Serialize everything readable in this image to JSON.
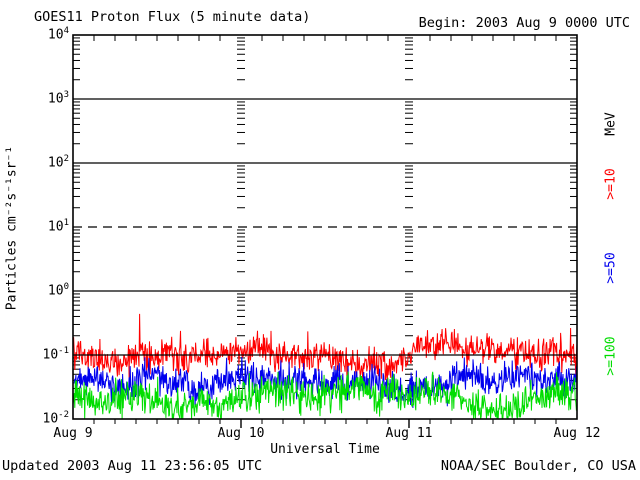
{
  "header": {
    "title": "GOES11 Proton Flux (5 minute data)",
    "begin_label": "Begin: 2003 Aug 9 0000 UTC"
  },
  "footer": {
    "updated": "Updated 2003 Aug 11 23:56:05 UTC",
    "credit": "NOAA/SEC Boulder, CO USA"
  },
  "chart_data": {
    "type": "line",
    "title": "GOES11 Proton Flux (5 minute data)",
    "xlabel": "Universal Time",
    "ylabel": "Particles cm⁻²s⁻¹sr⁻¹",
    "y_scale": "log",
    "ylim_exponents": [
      -2,
      4
    ],
    "y_tick_exponents": [
      4,
      3,
      2,
      1,
      0,
      -1,
      -2
    ],
    "x_tick_labels": [
      "Aug 9",
      "Aug 10",
      "Aug 11",
      "Aug 12"
    ],
    "x_start": "2003 Aug 9 0000 UTC",
    "days": 3,
    "minor_tick_hours": 3,
    "samples_per_day": 288,
    "grid": {
      "solid_decades": [
        3,
        2,
        0,
        -1
      ],
      "dashed_decades": [
        1
      ],
      "day_boundary_log_tick_columns": true
    },
    "legend": {
      "unit": "MeV",
      "position": "right-rotated"
    },
    "axis_color": "#000000",
    "background": "#ffffff",
    "series": [
      {
        "label": ">=10",
        "name": "protons >=10 MeV",
        "color": "#ff0000",
        "median_flux": 0.11,
        "typical_range": [
          0.05,
          0.3
        ],
        "peak_flux": 0.5,
        "log10_mu": -0.95,
        "log10_sigma": 0.13,
        "spike_prob": 0.06,
        "spike_amp": 0.5
      },
      {
        "label": ">=50",
        "name": "protons >=50 MeV",
        "color": "#0000ee",
        "median_flux": 0.04,
        "typical_range": [
          0.02,
          0.09
        ],
        "peak_flux": 0.17,
        "log10_mu": -1.4,
        "log10_sigma": 0.14,
        "spike_prob": 0.04,
        "spike_amp": 0.3
      },
      {
        "label": ">=100",
        "name": "protons >=100 MeV",
        "color": "#00dd00",
        "median_flux": 0.022,
        "typical_range": [
          0.01,
          0.05
        ],
        "peak_flux": 0.08,
        "log10_mu": -1.66,
        "log10_sigma": 0.15,
        "spike_prob": 0.03,
        "spike_amp": 0.25
      }
    ]
  }
}
